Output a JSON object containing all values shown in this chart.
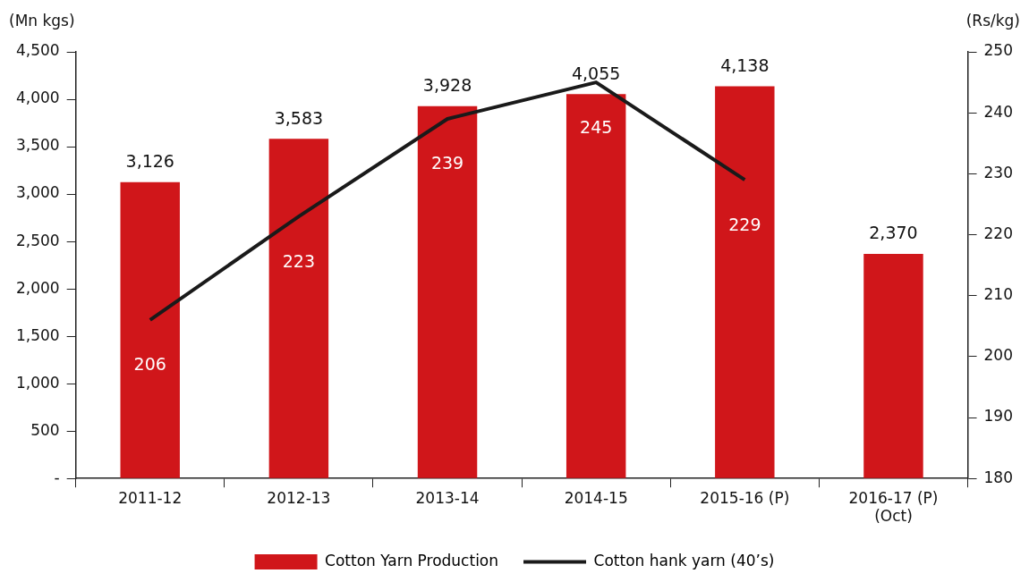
{
  "chart_data": {
    "type": "bar",
    "ylabel": "(Mn kgs)",
    "y2label": "(Rs/kg)",
    "categories": [
      "2011-12",
      "2012-13",
      "2013-14",
      "2014-15",
      "2015-16 (P)",
      "2016-17 (P)\n(Oct)"
    ],
    "series": [
      {
        "name": "Cotton Yarn Production",
        "color": "#d0161a",
        "values": [
          3126,
          3583,
          3928,
          4055,
          4138,
          2370
        ],
        "value_labels": [
          "3,126",
          "3,583",
          "3,928",
          "4,055",
          "4,138",
          "2,370"
        ]
      },
      {
        "name": "Cotton hank yarn (40’s)",
        "type": "line",
        "axis": "y2",
        "color": "#1a1a1a",
        "values": [
          206,
          223,
          239,
          245,
          229,
          null
        ],
        "value_labels": [
          "206",
          "223",
          "239",
          "245",
          "229",
          null
        ]
      }
    ],
    "ylim": [
      0,
      4500
    ],
    "yticks": [
      {
        "value": 0,
        "label": "-"
      },
      500,
      {
        "value": 1000,
        "label": "1,000"
      },
      {
        "value": 1500,
        "label": "1,500"
      },
      {
        "value": 2000,
        "label": "2,000"
      },
      {
        "value": 2500,
        "label": "2,500"
      },
      {
        "value": 3000,
        "label": "3,000"
      },
      {
        "value": 3500,
        "label": "3,500"
      },
      {
        "value": 4000,
        "label": "4,000"
      },
      {
        "value": 4500,
        "label": "4,500"
      }
    ],
    "y2lim": [
      180,
      250
    ],
    "y2ticks": [
      180,
      190,
      200,
      210,
      220,
      230,
      240,
      250
    ],
    "grid": false,
    "legend": "bottom",
    "marker": "none",
    "line_style": "solid"
  }
}
